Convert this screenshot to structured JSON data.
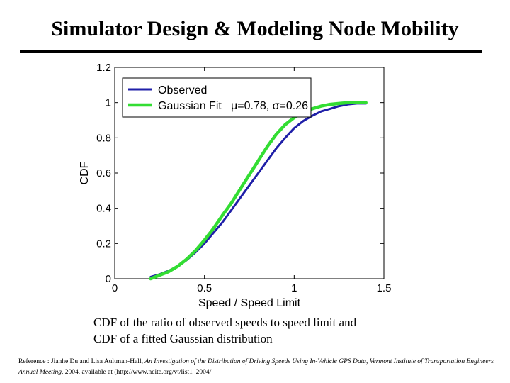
{
  "slide": {
    "title": "Simulator Design & Modeling Node Mobility",
    "caption_line1": "CDF of the ratio of observed speeds to speed limit and",
    "caption_line2": "CDF of a fitted Gaussian distribution",
    "reference": {
      "prefix": "Reference : Jianhe Du and Lisa Aultman-Hall, ",
      "work": "An Investigation of the Distribution of Driving Speeds Using In-Vehicle GPS Data, Vermont Institute of Transportation Engineers Annual Meeting",
      "suffix": ", 2004, available at (http://www.neite.org/vt/list1_2004/"
    }
  },
  "chart_data": {
    "type": "line",
    "xlabel": "Speed / Speed Limit",
    "ylabel": "CDF",
    "xlim": [
      0,
      1.5
    ],
    "ylim": [
      0,
      1.2
    ],
    "xticks": [
      0,
      0.5,
      1,
      1.5
    ],
    "xtick_labels": [
      "0",
      "0.5",
      "1",
      "1.5"
    ],
    "yticks": [
      0,
      0.2,
      0.4,
      0.6,
      0.8,
      1,
      1.2
    ],
    "ytick_labels": [
      "0",
      "0.2",
      "0.4",
      "0.6",
      "0.8",
      "1",
      "1.2"
    ],
    "grid": false,
    "legend_position": "top-left",
    "annotation": "μ=0.78, σ=0.26",
    "series": [
      {
        "name": "Observed",
        "color": "#1f1fa8",
        "x": [
          0.2,
          0.25,
          0.3,
          0.35,
          0.4,
          0.45,
          0.5,
          0.55,
          0.6,
          0.65,
          0.7,
          0.75,
          0.8,
          0.85,
          0.9,
          0.95,
          1.0,
          1.05,
          1.1,
          1.15,
          1.2,
          1.25,
          1.3,
          1.35,
          1.4
        ],
        "y": [
          0.01,
          0.025,
          0.045,
          0.07,
          0.105,
          0.15,
          0.2,
          0.26,
          0.32,
          0.39,
          0.46,
          0.53,
          0.6,
          0.67,
          0.74,
          0.8,
          0.855,
          0.895,
          0.925,
          0.95,
          0.965,
          0.98,
          0.99,
          0.995,
          0.995
        ]
      },
      {
        "name": "Gaussian Fit",
        "color": "#33dd33",
        "x": [
          0.2,
          0.25,
          0.3,
          0.35,
          0.4,
          0.45,
          0.5,
          0.55,
          0.6,
          0.65,
          0.7,
          0.75,
          0.8,
          0.85,
          0.9,
          0.95,
          1.0,
          1.05,
          1.1,
          1.15,
          1.2,
          1.25,
          1.3,
          1.35,
          1.4
        ],
        "y": [
          0.0,
          0.02,
          0.04,
          0.07,
          0.11,
          0.16,
          0.22,
          0.285,
          0.36,
          0.43,
          0.51,
          0.59,
          0.67,
          0.75,
          0.82,
          0.875,
          0.915,
          0.945,
          0.965,
          0.98,
          0.99,
          0.995,
          1.0,
          1.0,
          1.0
        ]
      }
    ]
  }
}
